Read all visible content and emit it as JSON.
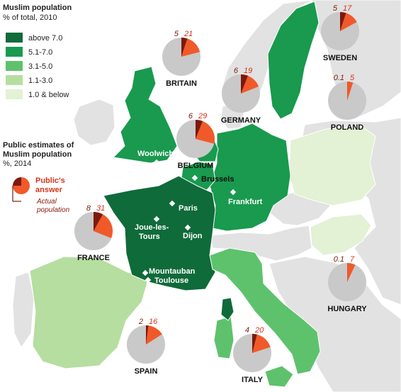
{
  "legend": {
    "title": "Muslim population",
    "subtitle": "% of total, 2010",
    "items": [
      {
        "label": "above 7.0",
        "color": "#0f6b3a"
      },
      {
        "label": "5.1-7.0",
        "color": "#199a4e"
      },
      {
        "label": "3.1-5.0",
        "color": "#5ec26d"
      },
      {
        "label": "1.1-3.0",
        "color": "#b5dea0"
      },
      {
        "label": "1.0 & below",
        "color": "#e3f1d4"
      }
    ]
  },
  "estimates": {
    "title_line1": "Public estimates of",
    "title_line2": "Muslim population",
    "subtitle": "%, 2014",
    "key_public_line1": "Public's",
    "key_public_line2": "answer",
    "key_actual_line1": "Actual",
    "key_actual_line2": "population"
  },
  "colors": {
    "public_answer": "#f05a2a",
    "actual_population": "#7b1a0c",
    "pie_base": "#c9c9c9",
    "other_land": "#e2e2e2",
    "sea": "#ffffff"
  },
  "countries": [
    {
      "name": "BRITAIN",
      "actual": "5",
      "public": "21",
      "actual_v": 5,
      "public_v": 21
    },
    {
      "name": "GERMANY",
      "actual": "6",
      "public": "19",
      "actual_v": 6,
      "public_v": 19
    },
    {
      "name": "SWEDEN",
      "actual": "5",
      "public": "17",
      "actual_v": 5,
      "public_v": 17
    },
    {
      "name": "POLAND",
      "actual": "0.1",
      "public": "5",
      "actual_v": 0.1,
      "public_v": 5
    },
    {
      "name": "BELGIUM",
      "actual": "6",
      "public": "29",
      "actual_v": 6,
      "public_v": 29
    },
    {
      "name": "FRANCE",
      "actual": "8",
      "public": "31",
      "actual_v": 8,
      "public_v": 31
    },
    {
      "name": "HUNGARY",
      "actual": "0.1",
      "public": "7",
      "actual_v": 0.1,
      "public_v": 7
    },
    {
      "name": "SPAIN",
      "actual": "2",
      "public": "16",
      "actual_v": 2,
      "public_v": 16
    },
    {
      "name": "ITALY",
      "actual": "4",
      "public": "20",
      "actual_v": 4,
      "public_v": 20
    }
  ],
  "cities": [
    {
      "name": "Woolwich"
    },
    {
      "name": "Brussels"
    },
    {
      "name": "Frankfurt"
    },
    {
      "name": "Paris"
    },
    {
      "name": "Joue-les-"
    },
    {
      "name": "Tours"
    },
    {
      "name": "Dijon"
    },
    {
      "name": "Mountauban"
    },
    {
      "name": "Toulouse"
    }
  ]
}
